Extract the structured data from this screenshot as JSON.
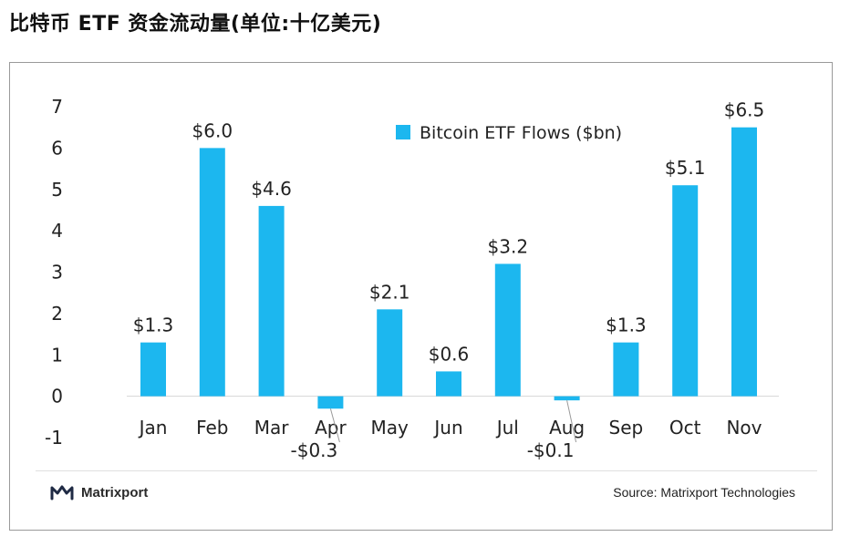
{
  "page": {
    "title": "比特币 ETF 资金流动量(单位:十亿美元)"
  },
  "chart_data": {
    "type": "bar",
    "categories": [
      "Jan",
      "Feb",
      "Mar",
      "Apr",
      "May",
      "Jun",
      "Jul",
      "Aug",
      "Sep",
      "Oct",
      "Nov"
    ],
    "series": [
      {
        "name": "Bitcoin ETF Flows ($bn)",
        "values": [
          1.3,
          6.0,
          4.6,
          -0.3,
          2.1,
          0.6,
          3.2,
          -0.1,
          1.3,
          5.1,
          6.5
        ],
        "color": "#1cb7ef"
      }
    ],
    "data_labels": [
      "$1.3",
      "$6.0",
      "$4.6",
      "-$0.3",
      "$2.1",
      "$0.6",
      "$3.2",
      "-$0.1",
      "$1.3",
      "$5.1",
      "$6.5"
    ],
    "y_ticks": [
      "7",
      "6",
      "5",
      "4",
      "3",
      "2",
      "1",
      "0",
      "-1"
    ],
    "ylim": [
      -1,
      7
    ],
    "grid": false,
    "legend": {
      "position": "top-center",
      "label": "Bitcoin ETF Flows ($bn)"
    }
  },
  "footer": {
    "brand": "Matrixport",
    "source": "Source: Matrixport Technologies"
  },
  "colors": {
    "bar": "#1cb7ef",
    "text": "#222222",
    "axis": "#cfcfcf",
    "brand_icon": "#1f2a44"
  }
}
